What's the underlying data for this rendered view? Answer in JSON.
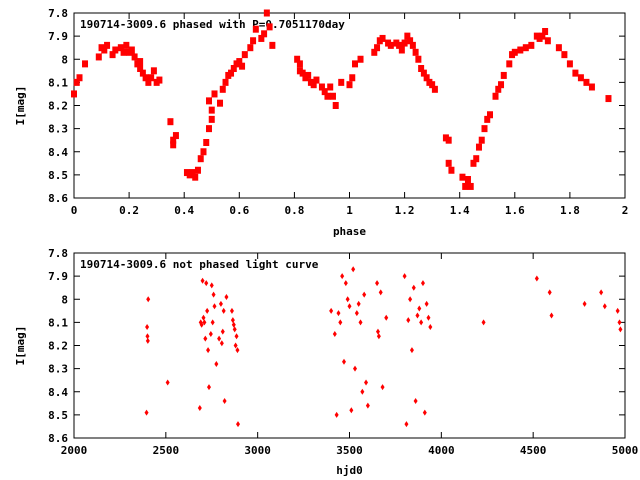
{
  "chart_data": [
    {
      "type": "scatter",
      "title": "190714-3009.6 phased with P=0.7051170day",
      "xlabel": "phase",
      "ylabel": "I[mag]",
      "xlim": [
        0,
        2
      ],
      "ylim": [
        7.8,
        8.6
      ],
      "y_inverted": true,
      "x_ticks": [
        0,
        0.2,
        0.4,
        0.6,
        0.8,
        1,
        1.2,
        1.4,
        1.6,
        1.8,
        2
      ],
      "x_tick_labels": [
        "0",
        "0.2",
        "0.4",
        "0.6",
        "0.8",
        "1",
        "1.2",
        "1.4",
        "1.6",
        "1.8",
        "2"
      ],
      "y_ticks": [
        7.8,
        7.9,
        8.0,
        8.1,
        8.2,
        8.3,
        8.4,
        8.5,
        8.6
      ],
      "y_tick_labels": [
        "7.8",
        "7.9",
        "8",
        "8.1",
        "8.2",
        "8.3",
        "8.4",
        "8.5",
        "8.6"
      ],
      "marker": "square",
      "color": "#ff0000",
      "series": [
        {
          "x": [
            0.0,
            0.01,
            0.02,
            0.04,
            0.09,
            0.1,
            0.11,
            0.12,
            0.14,
            0.15,
            0.17,
            0.18,
            0.19,
            0.2,
            0.21,
            0.22,
            0.23,
            0.24,
            0.24,
            0.25,
            0.26,
            0.27,
            0.28,
            0.29,
            0.3,
            0.31,
            0.35,
            0.36,
            0.36,
            0.37,
            0.41,
            0.42,
            0.43,
            0.44,
            0.45,
            0.46,
            0.47,
            0.48,
            0.49,
            0.49,
            0.5,
            0.5,
            0.51,
            0.53,
            0.54,
            0.55,
            0.56,
            0.57,
            0.58,
            0.59,
            0.6,
            0.61,
            0.62,
            0.64,
            0.65,
            0.66,
            0.68,
            0.69,
            0.7,
            0.71,
            0.72,
            0.81,
            0.82,
            0.82,
            0.83,
            0.84,
            0.85,
            0.86,
            0.87,
            0.88,
            0.9,
            0.91,
            0.92,
            0.93,
            0.94,
            0.95,
            0.97,
            1.0,
            1.01,
            1.02,
            1.04,
            1.09,
            1.1,
            1.11,
            1.12,
            1.14,
            1.15,
            1.17,
            1.18,
            1.19,
            1.2,
            1.21,
            1.22,
            1.23,
            1.24,
            1.25,
            1.26,
            1.27,
            1.28,
            1.29,
            1.3,
            1.31,
            1.35,
            1.36,
            1.36,
            1.37,
            1.41,
            1.42,
            1.43,
            1.44,
            1.45,
            1.46,
            1.47,
            1.48,
            1.49,
            1.5,
            1.51,
            1.53,
            1.54,
            1.55,
            1.56,
            1.58,
            1.59,
            1.6,
            1.62,
            1.64,
            1.66,
            1.68,
            1.69,
            1.7,
            1.71,
            1.72,
            1.76,
            1.78,
            1.8,
            1.82,
            1.84,
            1.86,
            1.88,
            1.94
          ],
          "y": [
            8.15,
            8.1,
            8.08,
            8.02,
            7.99,
            7.95,
            7.96,
            7.94,
            7.98,
            7.96,
            7.95,
            7.97,
            7.94,
            7.97,
            7.96,
            7.99,
            8.02,
            8.04,
            8.01,
            8.06,
            8.08,
            8.1,
            8.08,
            8.05,
            8.1,
            8.09,
            8.27,
            8.35,
            8.37,
            8.33,
            8.49,
            8.5,
            8.49,
            8.51,
            8.48,
            8.43,
            8.4,
            8.36,
            8.3,
            8.18,
            8.22,
            8.26,
            8.15,
            8.19,
            8.13,
            8.1,
            8.07,
            8.06,
            8.04,
            8.02,
            8.01,
            8.03,
            7.98,
            7.95,
            7.92,
            7.87,
            7.91,
            7.89,
            7.8,
            7.86,
            7.94,
            8.0,
            8.02,
            8.05,
            8.06,
            8.08,
            8.07,
            8.1,
            8.11,
            8.09,
            8.12,
            8.14,
            8.16,
            8.12,
            8.16,
            8.2,
            8.1,
            8.11,
            8.08,
            8.02,
            8.0,
            7.97,
            7.95,
            7.92,
            7.91,
            7.93,
            7.94,
            7.93,
            7.94,
            7.96,
            7.93,
            7.9,
            7.92,
            7.94,
            7.97,
            8.0,
            8.04,
            8.06,
            8.08,
            8.1,
            8.11,
            8.13,
            8.34,
            8.35,
            8.45,
            8.48,
            8.51,
            8.55,
            8.52,
            8.55,
            8.45,
            8.43,
            8.38,
            8.35,
            8.3,
            8.26,
            8.24,
            8.16,
            8.13,
            8.11,
            8.07,
            8.02,
            7.98,
            7.97,
            7.96,
            7.95,
            7.94,
            7.9,
            7.91,
            7.9,
            7.88,
            7.92,
            7.95,
            7.98,
            8.02,
            8.06,
            8.08,
            8.1,
            8.12,
            8.17
          ]
        }
      ]
    },
    {
      "type": "scatter",
      "title": "190714-3009.6 not phased light curve",
      "xlabel": "hjd0",
      "ylabel": "I[mag]",
      "xlim": [
        2000,
        5000
      ],
      "ylim": [
        7.8,
        8.6
      ],
      "y_inverted": true,
      "x_ticks": [
        2000,
        2500,
        3000,
        3500,
        4000,
        4500,
        5000
      ],
      "x_tick_labels": [
        "2000",
        "2500",
        "3000",
        "3500",
        "4000",
        "4500",
        "5000"
      ],
      "y_ticks": [
        7.8,
        7.9,
        8.0,
        8.1,
        8.2,
        8.3,
        8.4,
        8.5,
        8.6
      ],
      "y_tick_labels": [
        "7.8",
        "7.9",
        "8",
        "8.1",
        "8.2",
        "8.3",
        "8.4",
        "8.5",
        "8.6"
      ],
      "marker": "diamond",
      "color": "#ff0000",
      "series": [
        {
          "x": [
            2395,
            2398,
            2400,
            2402,
            2404,
            2510,
            2685,
            2690,
            2695,
            2700,
            2705,
            2710,
            2715,
            2720,
            2725,
            2730,
            2735,
            2745,
            2750,
            2755,
            2760,
            2765,
            2775,
            2790,
            2800,
            2805,
            2810,
            2815,
            2820,
            2830,
            2860,
            2865,
            2870,
            2875,
            2880,
            2885,
            2890,
            2893,
            3400,
            3420,
            3430,
            3440,
            3450,
            3460,
            3470,
            3480,
            3490,
            3500,
            3510,
            3520,
            3530,
            3540,
            3550,
            3560,
            3570,
            3580,
            3590,
            3600,
            3650,
            3655,
            3660,
            3670,
            3680,
            3700,
            3800,
            3810,
            3820,
            3830,
            3840,
            3850,
            3860,
            3870,
            3880,
            3890,
            3900,
            3910,
            3920,
            3930,
            3940,
            4230,
            4520,
            4590,
            4600,
            4780,
            4870,
            4890,
            4960,
            4970,
            4975
          ],
          "y": [
            8.49,
            8.12,
            8.16,
            8.18,
            8.0,
            8.36,
            8.47,
            8.1,
            8.11,
            7.92,
            8.08,
            8.1,
            8.17,
            7.93,
            8.05,
            8.22,
            8.38,
            8.15,
            7.94,
            8.1,
            7.98,
            8.03,
            8.28,
            8.17,
            8.02,
            8.19,
            8.14,
            8.05,
            8.44,
            7.99,
            8.05,
            8.09,
            8.11,
            8.13,
            8.2,
            8.16,
            8.22,
            8.54,
            8.05,
            8.15,
            8.5,
            8.06,
            8.1,
            7.9,
            8.27,
            7.93,
            8.0,
            8.03,
            8.48,
            7.87,
            8.3,
            8.06,
            8.02,
            8.1,
            8.4,
            7.98,
            8.36,
            8.46,
            7.93,
            8.14,
            8.16,
            7.97,
            8.38,
            8.08,
            7.9,
            8.54,
            8.09,
            8.0,
            8.22,
            7.95,
            8.44,
            8.07,
            8.04,
            8.1,
            7.93,
            8.49,
            8.02,
            8.08,
            8.12,
            8.1,
            7.91,
            7.97,
            8.07,
            8.02,
            7.97,
            8.03,
            8.05,
            8.1,
            8.13
          ]
        }
      ]
    }
  ]
}
